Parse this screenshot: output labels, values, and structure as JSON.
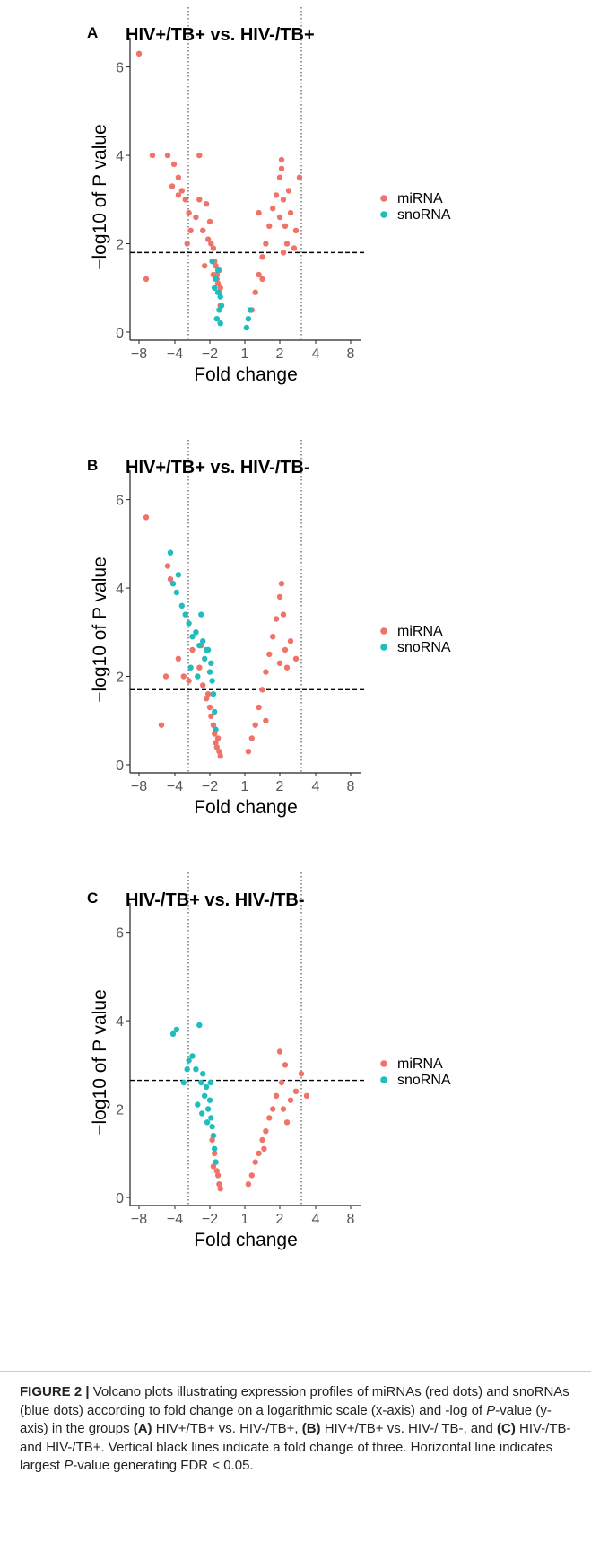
{
  "page": {
    "background": "#ffffff"
  },
  "colors": {
    "mirna": "#f0736a",
    "snorna": "#1fbdbd",
    "axis": "#222222",
    "tick": "#555555"
  },
  "chart_data": [
    {
      "panel_label": "A",
      "type": "scatter",
      "title": "HIV+/TB+ vs. HIV-/TB+",
      "xlabel": "Fold change",
      "ylabel": "-log10 of P value",
      "x_tick_labels": [
        "-8",
        "-4",
        "-2",
        "1",
        "2",
        "4",
        "8"
      ],
      "y_ticks": [
        0,
        2,
        4,
        6
      ],
      "ylim": [
        0,
        6.5
      ],
      "vlines_fold_change": [
        -3,
        3
      ],
      "hline_threshold": 1.8,
      "legend": {
        "position": "right",
        "entries": [
          {
            "name": "miRNA",
            "color": "#f0736a"
          },
          {
            "name": "snoRNA",
            "color": "#1fbdbd"
          }
        ]
      },
      "series": [
        {
          "name": "miRNA",
          "x": [
            -8,
            -6.5,
            -4.8,
            -4.3,
            -4.1,
            -3.8,
            -3.6,
            -3.4,
            -3.2,
            -3.1,
            -3.3,
            -2.8,
            -2.6,
            -2.4,
            -2.2,
            -2.1,
            -2,
            -1.9,
            -1.7,
            -1.6,
            -1.5,
            -1.4,
            -1.3,
            -1.2,
            -1.1,
            -1.1,
            -1.2,
            -1.4,
            -1.7,
            -2.3,
            1.2,
            1.3,
            1.4,
            1.5,
            1.6,
            1.7,
            1.8,
            1.9,
            2,
            2,
            2.1,
            2.2,
            2.3,
            2.4,
            2.5,
            2.6,
            2.8,
            3.1,
            1.5,
            -7.2,
            -3.8,
            -2.6,
            2.9,
            2.2,
            2.1,
            1.4
          ],
          "y": [
            6.3,
            4.0,
            4.0,
            3.3,
            3.8,
            3.5,
            3.2,
            3.0,
            2.7,
            2.3,
            2.0,
            2.6,
            3.0,
            2.3,
            2.9,
            2.1,
            2.5,
            2.0,
            1.9,
            1.6,
            1.5,
            1.3,
            1.1,
            0.9,
            0.6,
            1.0,
            1.4,
            1.2,
            1.3,
            1.5,
            0.5,
            0.9,
            1.3,
            1.7,
            2.0,
            2.4,
            2.8,
            3.1,
            3.5,
            2.6,
            3.7,
            3.0,
            2.4,
            2.0,
            3.2,
            2.7,
            1.9,
            3.5,
            1.2,
            1.2,
            3.1,
            4.0,
            2.3,
            1.8,
            3.9,
            2.7
          ]
        },
        {
          "name": "snoRNA",
          "x": [
            -1.8,
            -1.5,
            -1.3,
            -1.2,
            -1.1,
            -1.0,
            -1.3,
            -1.6,
            -1.4,
            -1.1,
            1.05,
            1.1,
            1.15
          ],
          "y": [
            1.6,
            1.2,
            0.9,
            0.5,
            0.2,
            0.6,
            1.4,
            1.0,
            0.3,
            0.8,
            0.1,
            0.3,
            0.5
          ]
        }
      ]
    },
    {
      "panel_label": "B",
      "type": "scatter",
      "title": "HIV+/TB+ vs. HIV-/TB-",
      "xlabel": "Fold change",
      "ylabel": "-log10 of P value",
      "x_tick_labels": [
        "-8",
        "-4",
        "-2",
        "1",
        "2",
        "4",
        "8"
      ],
      "y_ticks": [
        0,
        2,
        4,
        6
      ],
      "ylim": [
        0,
        6.5
      ],
      "vlines_fold_change": [
        -3,
        3
      ],
      "hline_threshold": 1.7,
      "legend": {
        "position": "right",
        "entries": [
          {
            "name": "miRNA",
            "color": "#f0736a"
          },
          {
            "name": "snoRNA",
            "color": "#1fbdbd"
          }
        ]
      },
      "series": [
        {
          "name": "miRNA",
          "x": [
            -7.2,
            -5.5,
            -4.8,
            -4.5,
            -3.8,
            -3.5,
            -3.2,
            -3.0,
            -2.8,
            -2.6,
            -2.4,
            -2.2,
            -2.0,
            -1.9,
            -1.7,
            -1.6,
            -1.5,
            -1.4,
            -1.3,
            -1.2,
            -1.1,
            1.1,
            1.2,
            1.3,
            1.4,
            1.5,
            1.6,
            1.7,
            1.8,
            1.9,
            2.0,
            2.1,
            2.2,
            2.3,
            2.4,
            2.6,
            2.9,
            -5.0,
            -2.5,
            -2.1,
            1.6,
            2.0
          ],
          "y": [
            5.6,
            0.9,
            4.5,
            4.2,
            2.4,
            2.0,
            1.9,
            2.6,
            3.0,
            2.2,
            1.8,
            1.5,
            1.3,
            1.1,
            0.9,
            0.7,
            0.5,
            0.4,
            0.6,
            0.3,
            0.2,
            0.3,
            0.6,
            0.9,
            1.3,
            1.7,
            2.1,
            2.5,
            2.9,
            3.3,
            3.8,
            4.1,
            3.4,
            2.6,
            2.2,
            2.8,
            2.4,
            2.0,
            2.7,
            1.6,
            1.0,
            2.3
          ]
        },
        {
          "name": "snoRNA",
          "x": [
            -4.5,
            -4.2,
            -3.9,
            -3.6,
            -3.4,
            -3.2,
            -3.0,
            -2.8,
            -2.6,
            -2.4,
            -2.3,
            -2.1,
            -2.0,
            -1.8,
            -1.7,
            -1.6,
            -1.5,
            -3.8,
            -3.1,
            -2.7,
            -2.5,
            -2.2,
            -1.9
          ],
          "y": [
            4.8,
            4.1,
            3.9,
            3.6,
            3.4,
            3.2,
            2.9,
            3.0,
            2.7,
            2.8,
            2.4,
            2.6,
            2.1,
            1.9,
            1.6,
            1.2,
            0.8,
            4.3,
            2.2,
            2.0,
            3.4,
            2.6,
            2.3
          ]
        }
      ]
    },
    {
      "panel_label": "C",
      "type": "scatter",
      "title": "HIV-/TB+ vs. HIV-/TB-",
      "xlabel": "Fold change",
      "ylabel": "-log10 of P value",
      "x_tick_labels": [
        "-8",
        "-4",
        "-2",
        "1",
        "2",
        "4",
        "8"
      ],
      "y_ticks": [
        0,
        2,
        4,
        6
      ],
      "ylim": [
        0,
        6.5
      ],
      "vlines_fold_change": [
        -3,
        3
      ],
      "hline_threshold": 2.65,
      "legend": {
        "position": "right",
        "entries": [
          {
            "name": "miRNA",
            "color": "#f0736a"
          },
          {
            "name": "snoRNA",
            "color": "#1fbdbd"
          }
        ]
      },
      "series": [
        {
          "name": "miRNA",
          "x": [
            -1.8,
            -1.6,
            -1.5,
            -1.4,
            -1.3,
            -1.2,
            -1.1,
            1.1,
            1.2,
            1.3,
            1.4,
            1.5,
            1.6,
            1.7,
            1.8,
            1.9,
            2.0,
            2.1,
            2.2,
            2.4,
            2.6,
            2.9,
            3.2,
            -1.7,
            1.55,
            2.3,
            3.5
          ],
          "y": [
            1.3,
            1.0,
            0.8,
            0.6,
            0.5,
            0.3,
            0.2,
            0.3,
            0.5,
            0.8,
            1.0,
            1.3,
            1.5,
            1.8,
            2.0,
            2.3,
            3.3,
            2.6,
            2.0,
            1.7,
            2.2,
            2.4,
            2.8,
            0.7,
            1.1,
            3.0,
            2.3
          ]
        },
        {
          "name": "snoRNA",
          "x": [
            -4.2,
            -3.9,
            -3.5,
            -3.2,
            -3.0,
            -2.8,
            -2.6,
            -2.5,
            -2.4,
            -2.3,
            -2.2,
            -2.1,
            -2.0,
            -1.9,
            -1.8,
            -1.7,
            -1.6,
            -1.5,
            -2.7,
            -3.3,
            -2.45,
            -2.15,
            -1.95
          ],
          "y": [
            3.7,
            3.8,
            2.6,
            3.1,
            3.2,
            2.9,
            3.9,
            2.6,
            2.8,
            2.3,
            2.5,
            2.0,
            2.2,
            1.8,
            1.6,
            1.4,
            1.1,
            0.8,
            2.1,
            2.9,
            1.9,
            1.7,
            2.6
          ]
        }
      ]
    }
  ],
  "caption": {
    "figure_label": "FIGURE 2 |",
    "text_1": " Volcano plots illustrating expression profiles of miRNAs (red dots) and snoRNAs (blue dots) according to fold change on a logarithmic scale (x-axis) and -log of ",
    "p_1": "P",
    "text_2": "-value (y-axis) in the groups ",
    "label_a": "(A)",
    "text_3": " HIV+/TB+ vs. HIV-/TB+, ",
    "label_b": "(B)",
    "text_4": " HIV+/TB+ vs. HIV-/ TB-, and ",
    "label_c": "(C)",
    "text_5": " HIV-/TB- and HIV-/TB+. Vertical black lines indicate a fold change of three. Horizontal line indicates largest ",
    "p_2": "P",
    "text_6": "-value generating FDR < 0.05."
  }
}
